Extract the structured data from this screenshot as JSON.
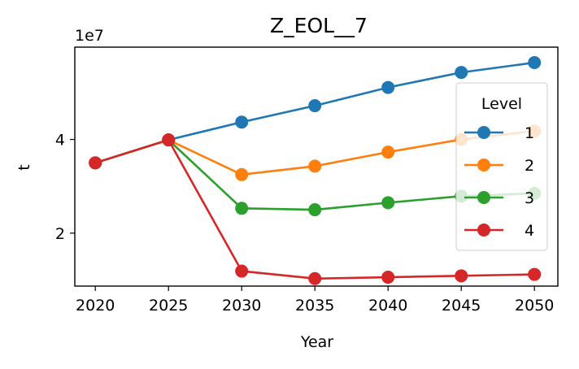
{
  "chart_data": {
    "type": "line",
    "title": "Z_EOL__7",
    "xlabel": "Year",
    "ylabel": "t",
    "y_offset_label": "1e7",
    "x": [
      2020,
      2025,
      2030,
      2035,
      2040,
      2045,
      2050
    ],
    "x_ticks": [
      "2020",
      "2025",
      "2030",
      "2035",
      "2040",
      "2045",
      "2050"
    ],
    "y_tick_values": [
      2,
      4
    ],
    "y_ticks": [
      "2",
      "4"
    ],
    "xlim": [
      2018.6,
      2051.6
    ],
    "ylim": [
      0.87,
      5.97
    ],
    "grid": false,
    "legend": {
      "title": "Level",
      "placement": "right"
    },
    "series": [
      {
        "name": "1",
        "color": "#1f77b4",
        "values": [
          3.5,
          3.99,
          4.37,
          4.72,
          5.11,
          5.43,
          5.64
        ]
      },
      {
        "name": "2",
        "color": "#ff7f0e",
        "values": [
          3.5,
          3.99,
          3.25,
          3.43,
          3.73,
          4.0,
          4.18
        ]
      },
      {
        "name": "3",
        "color": "#2ca02c",
        "values": [
          3.5,
          3.99,
          2.53,
          2.5,
          2.65,
          2.79,
          2.85
        ]
      },
      {
        "name": "4",
        "color": "#d62728",
        "values": [
          3.5,
          3.99,
          1.19,
          1.03,
          1.06,
          1.09,
          1.12
        ]
      }
    ]
  }
}
